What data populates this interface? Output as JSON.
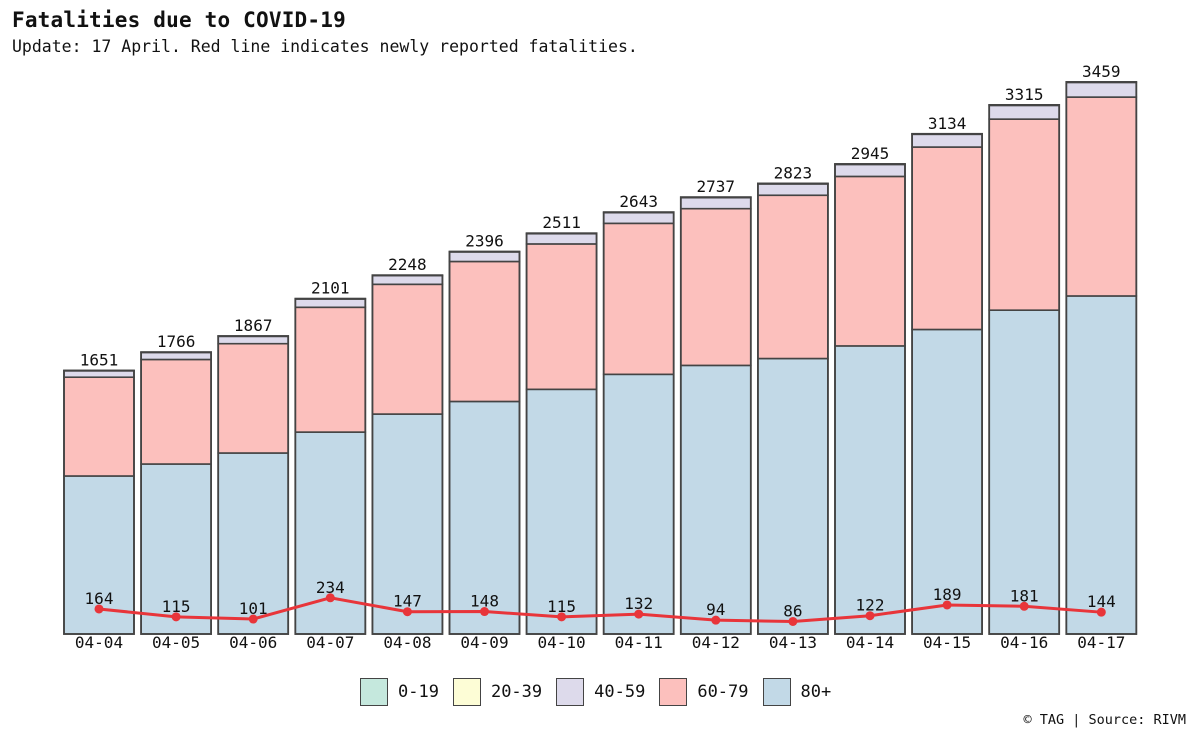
{
  "header": {
    "title": "Fatalities due to COVID-19",
    "subtitle": "Update: 17 April. Red line indicates newly reported fatalities."
  },
  "credit": "© TAG | Source: RIVM",
  "chart_data": {
    "type": "bar",
    "stacked": true,
    "categories": [
      "04-04",
      "04-05",
      "04-06",
      "04-07",
      "04-08",
      "04-09",
      "04-10",
      "04-11",
      "04-12",
      "04-13",
      "04-14",
      "04-15",
      "04-16",
      "04-17"
    ],
    "totals": [
      1651,
      1766,
      1867,
      2101,
      2248,
      2396,
      2511,
      2643,
      2737,
      2823,
      2945,
      3134,
      3315,
      3459
    ],
    "series": [
      {
        "name": "0-19",
        "color": "#c5e8dd",
        "values": [
          0,
          0,
          0,
          0,
          0,
          0,
          0,
          0,
          0,
          0,
          0,
          0,
          0,
          0
        ]
      },
      {
        "name": "20-39",
        "color": "#fdfdd6",
        "values": [
          2,
          2,
          2,
          2,
          2,
          2,
          3,
          3,
          3,
          3,
          3,
          3,
          3,
          3
        ]
      },
      {
        "name": "40-59",
        "color": "#dddaeb",
        "values": [
          40,
          44,
          46,
          52,
          55,
          60,
          64,
          67,
          69,
          71,
          75,
          80,
          86,
          92
        ]
      },
      {
        "name": "60-79",
        "color": "#fcc0bd",
        "values": [
          619,
          655,
          685,
          782,
          813,
          877,
          911,
          946,
          982,
          1023,
          1062,
          1143,
          1197,
          1246
        ]
      },
      {
        "name": "80+",
        "color": "#c2d9e7",
        "values": [
          990,
          1065,
          1134,
          1265,
          1378,
          1457,
          1533,
          1627,
          1683,
          1726,
          1805,
          1908,
          2029,
          2118
        ]
      }
    ],
    "line": {
      "name": "newly reported fatalities",
      "color": "#e8353a",
      "values": [
        164,
        115,
        101,
        234,
        147,
        148,
        115,
        132,
        94,
        86,
        122,
        189,
        181,
        144
      ]
    },
    "legend": [
      "0-19",
      "20-39",
      "40-59",
      "60-79",
      "80+"
    ],
    "legend_placement": "bottom",
    "grid": false
  }
}
